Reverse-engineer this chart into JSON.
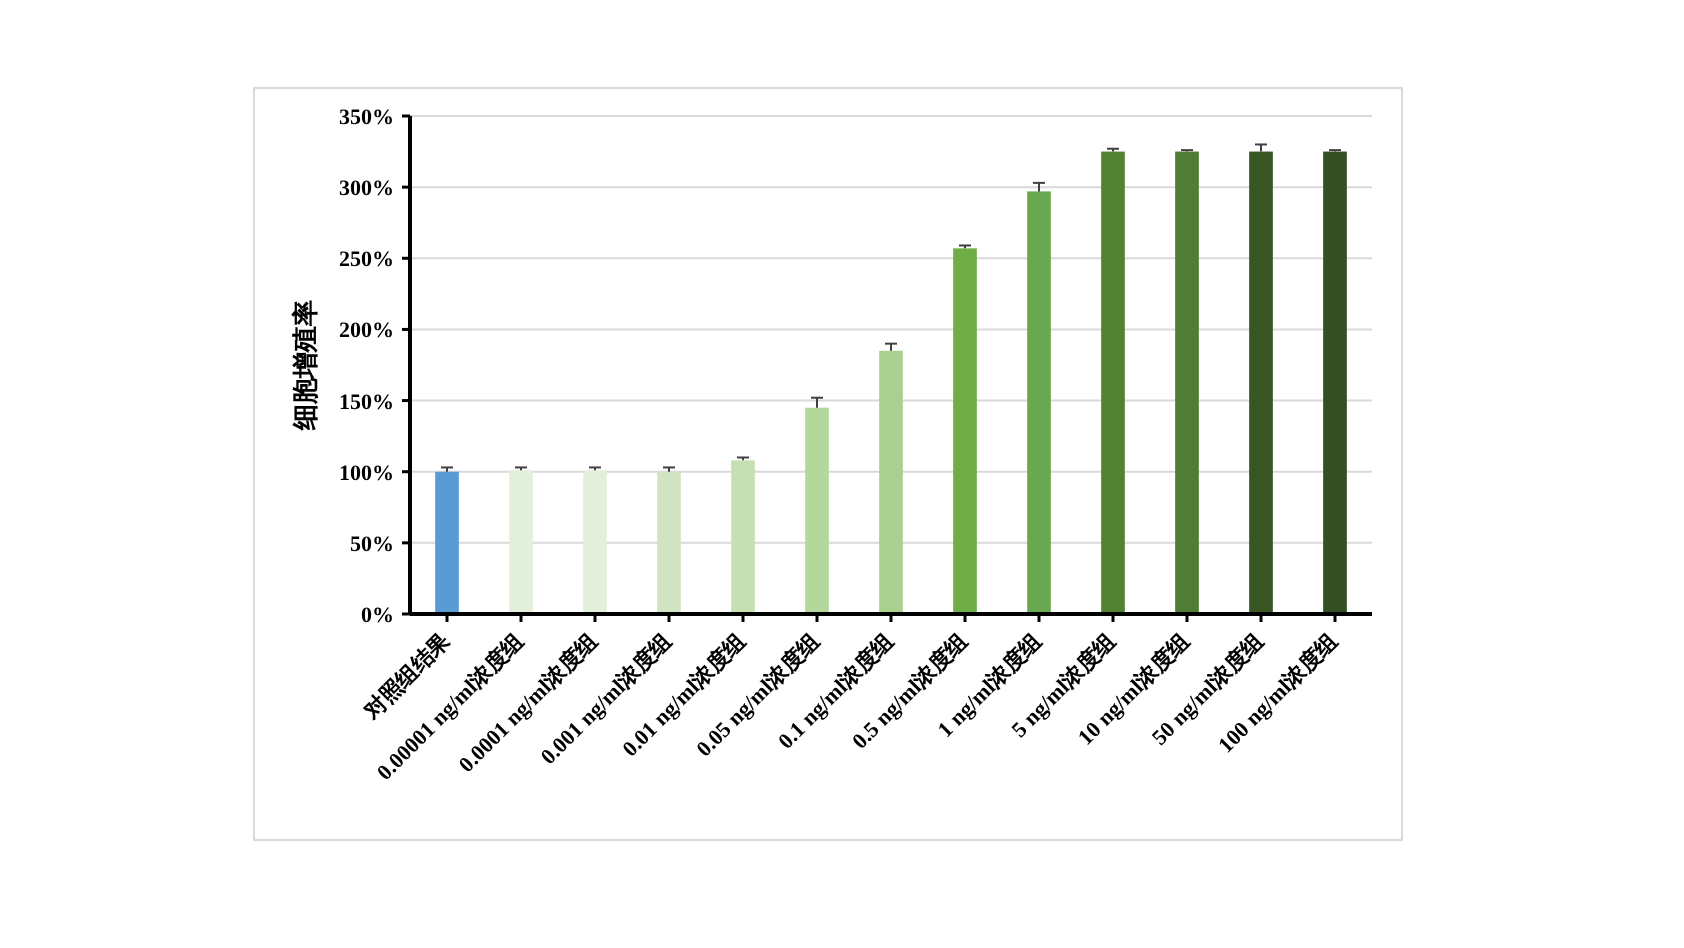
{
  "chart_data": {
    "type": "bar",
    "ylabel": "细胞增殖率",
    "categories": [
      "对照组结果",
      "0.00001 ng/ml浓度组",
      "0.0001 ng/ml浓度组",
      "0.001 ng/ml浓度组",
      "0.01 ng/ml浓度组",
      "0.05 ng/ml浓度组",
      "0.1 ng/ml浓度组",
      "0.5 ng/ml浓度组",
      "1 ng/ml浓度组",
      "5 ng/ml浓度组",
      "10 ng/ml浓度组",
      "50 ng/ml浓度组",
      "100 ng/ml浓度组"
    ],
    "values": [
      100,
      101,
      101,
      100,
      108,
      145,
      185,
      257,
      297,
      325,
      325,
      325,
      325
    ],
    "errors": [
      [
        100,
        103
      ],
      [
        101,
        103
      ],
      [
        101,
        103
      ],
      [
        100,
        103
      ],
      [
        108,
        110
      ],
      [
        145,
        152
      ],
      [
        185,
        190
      ],
      [
        257,
        259
      ],
      [
        297,
        303
      ],
      [
        325,
        327
      ],
      [
        325,
        326
      ],
      [
        325,
        330
      ],
      [
        325,
        326
      ]
    ],
    "colors": [
      "#5b9bd5",
      "#e2efda",
      "#e2efda",
      "#d0e4c2",
      "#c6e0b4",
      "#b4d79c",
      "#a9d08e",
      "#70ad47",
      "#6aa84f",
      "#548235",
      "#4f7d34",
      "#375623",
      "#344f24"
    ],
    "ylim": [
      0,
      350
    ],
    "yticks": [
      {
        "value": 0,
        "label": "0%"
      },
      {
        "value": 50,
        "label": "50%"
      },
      {
        "value": 100,
        "label": "100%"
      },
      {
        "value": 150,
        "label": "150%"
      },
      {
        "value": 200,
        "label": "200%"
      },
      {
        "value": 250,
        "label": "250%"
      },
      {
        "value": 300,
        "label": "300%"
      },
      {
        "value": 350,
        "label": "350%"
      }
    ],
    "grid": "y"
  }
}
